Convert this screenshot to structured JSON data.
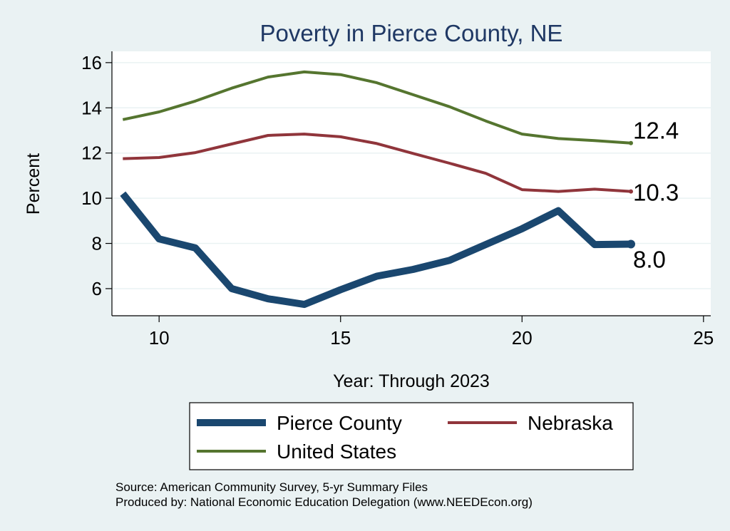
{
  "chart_data": {
    "type": "line",
    "title": "Poverty in Pierce County, NE",
    "xlabel": "Year: Through 2023",
    "ylabel": "Percent",
    "xlim": [
      8.7,
      25.2
    ],
    "ylim": [
      4.8,
      16.5
    ],
    "xticks": [
      10,
      15,
      20,
      25
    ],
    "yticks": [
      6,
      8,
      10,
      12,
      14,
      16
    ],
    "grid": true,
    "legend_position": "bottom",
    "series": [
      {
        "name": "Pierce County",
        "color": "#1a476f",
        "x": [
          9,
          10,
          11,
          12,
          13,
          14,
          15,
          16,
          17,
          18,
          19,
          20,
          21,
          22,
          23
        ],
        "values": [
          10.2,
          8.2,
          7.8,
          6.0,
          5.55,
          5.3,
          5.95,
          6.55,
          6.85,
          7.25,
          7.95,
          8.65,
          9.45,
          7.95,
          7.97
        ],
        "end_label": "8.0"
      },
      {
        "name": "Nebraska",
        "color": "#90353b",
        "x": [
          9,
          10,
          11,
          12,
          13,
          14,
          15,
          16,
          17,
          18,
          19,
          20,
          21,
          22,
          23
        ],
        "values": [
          11.75,
          11.8,
          12.02,
          12.4,
          12.78,
          12.84,
          12.72,
          12.42,
          11.98,
          11.55,
          11.1,
          10.38,
          10.3,
          10.4,
          10.3
        ],
        "end_label": "10.3"
      },
      {
        "name": "United States",
        "color": "#55752f",
        "x": [
          9,
          10,
          11,
          12,
          13,
          14,
          15,
          16,
          17,
          18,
          19,
          20,
          21,
          22,
          23
        ],
        "values": [
          13.48,
          13.82,
          14.3,
          14.87,
          15.36,
          15.59,
          15.47,
          15.11,
          14.58,
          14.05,
          13.42,
          12.84,
          12.64,
          12.55,
          12.44
        ],
        "end_label": "12.4"
      }
    ],
    "legend": [
      "Pierce County",
      "Nebraska",
      "United States"
    ],
    "notes": [
      "Source: American Community Survey, 5-yr Summary Files",
      "Produced by: National Economic Education Delegation (www.NEEDEcon.org)"
    ]
  }
}
